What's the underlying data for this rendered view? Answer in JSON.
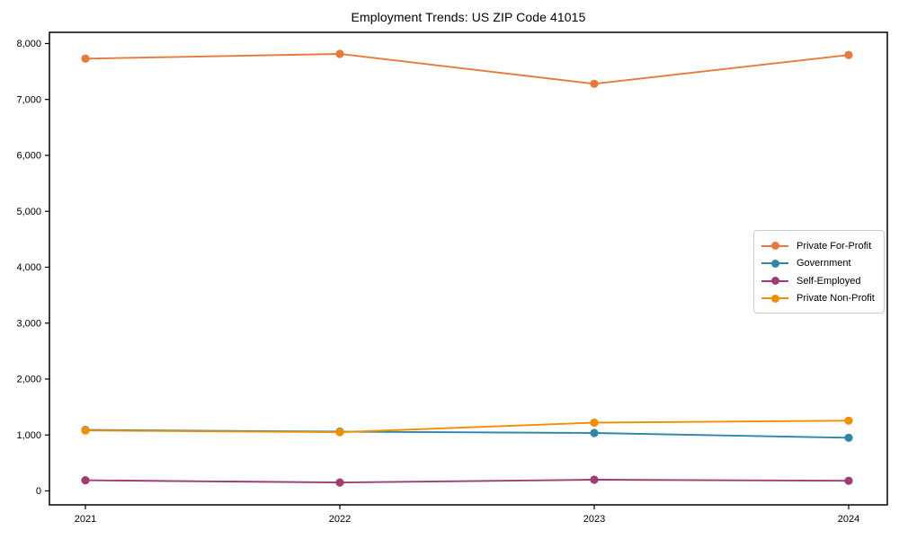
{
  "chart_data": {
    "type": "line",
    "title": "Employment Trends: US ZIP Code 41015",
    "xlabel": "",
    "ylabel": "",
    "x": [
      2021,
      2022,
      2023,
      2024
    ],
    "x_tick_labels": [
      "2021",
      "2022",
      "2023",
      "2024"
    ],
    "series": [
      {
        "name": "Private For-Profit",
        "color": "#E8793A",
        "values": [
          7730,
          7815,
          7280,
          7795
        ]
      },
      {
        "name": "Government",
        "color": "#2E86AB",
        "values": [
          1090,
          1060,
          1035,
          950
        ]
      },
      {
        "name": "Self-Employed",
        "color": "#A23B72",
        "values": [
          190,
          150,
          200,
          180
        ]
      },
      {
        "name": "Private Non-Profit",
        "color": "#F18F01",
        "values": [
          1080,
          1050,
          1220,
          1255
        ]
      }
    ],
    "yticks": [
      0,
      1000,
      2000,
      3000,
      4000,
      5000,
      6000,
      7000,
      8000
    ],
    "ytick_labels": [
      "0",
      "1,000",
      "2,000",
      "3,000",
      "4,000",
      "5,000",
      "6,000",
      "7,000",
      "8,000"
    ],
    "ylim": [
      -250,
      8200
    ],
    "grid": false,
    "legend_position": "center-right",
    "marker": "circle",
    "background": "#ffffff",
    "axis_color": "#000000"
  }
}
